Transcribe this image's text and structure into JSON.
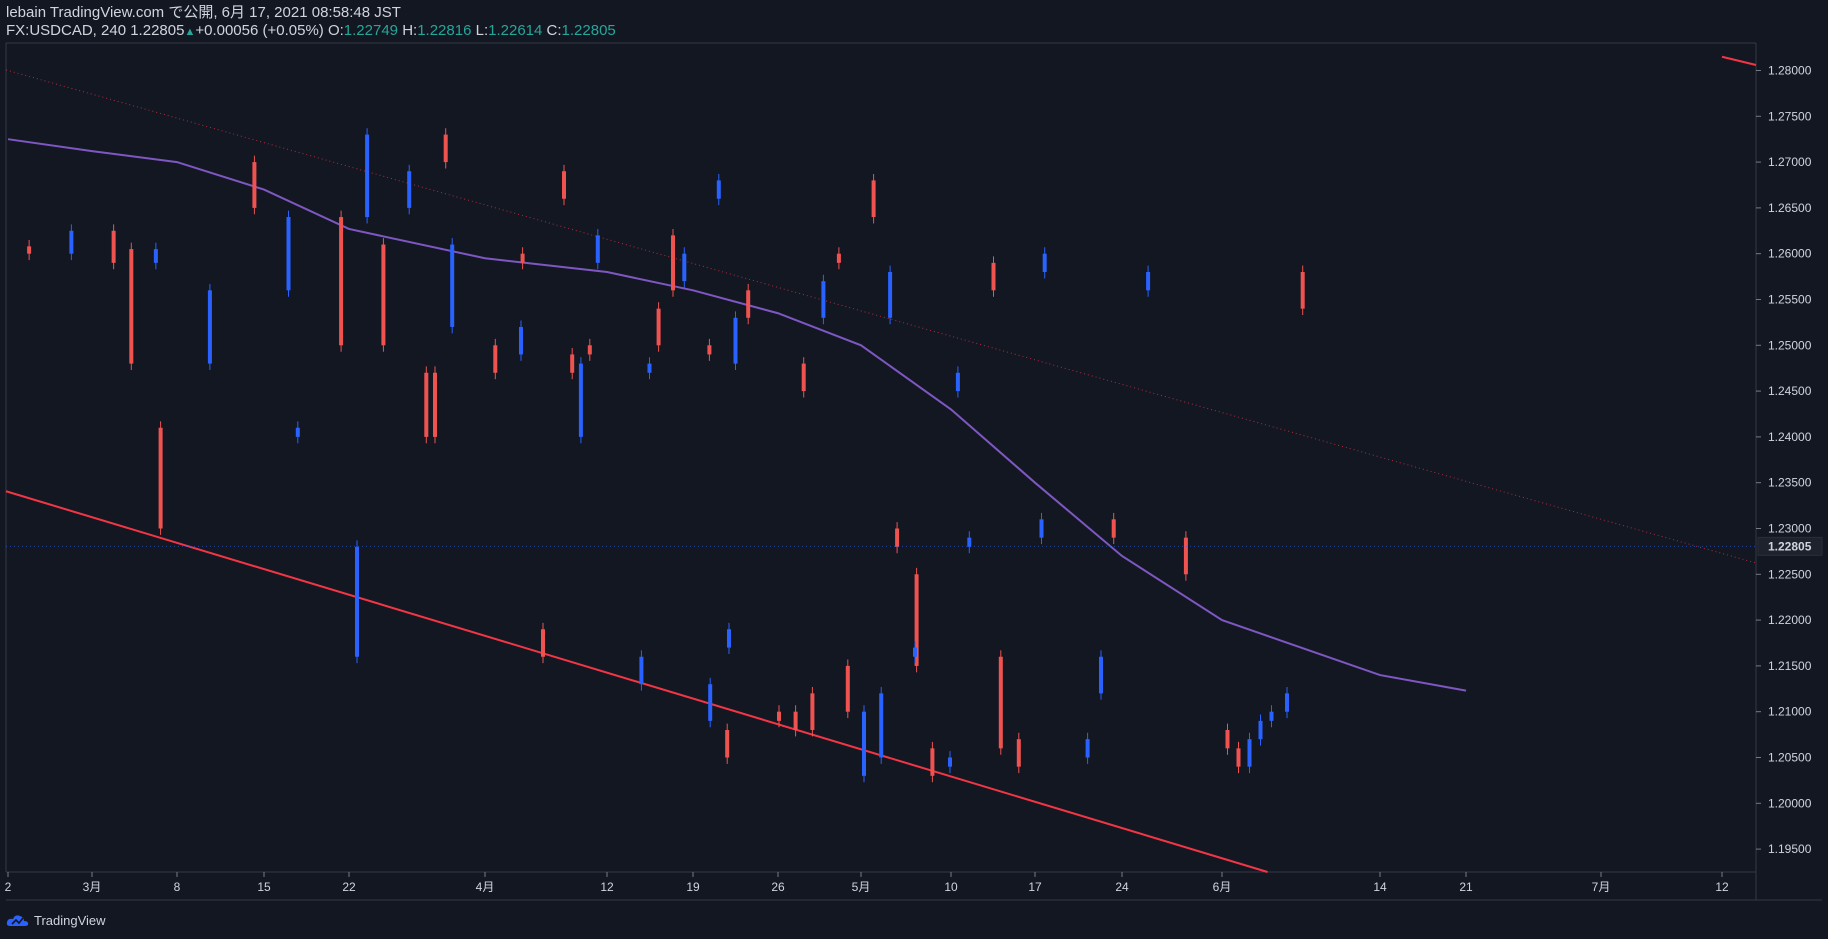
{
  "header": {
    "publisher": "lebain TradingView.com で公開, 6月 17, 2021 08:58:48 JST",
    "symbol": "FX:USDCAD, 240",
    "last": "1.22805",
    "change": "+0.00056 (+0.05%)",
    "o_label": "O:",
    "o_value": "1.22749",
    "h_label": "H:",
    "h_value": "1.22816",
    "l_label": "L:",
    "l_value": "1.22614",
    "c_label": "C:",
    "c_value": "1.22805"
  },
  "footer": {
    "brand": "TradingView",
    "icon": "tradingview-cloud-icon"
  },
  "colors": {
    "background": "#131722",
    "up": "#2962ff",
    "down": "#ef5350",
    "ma": "#7e57c2",
    "trendline": "#f23645",
    "grid_text": "#d1d4dc",
    "change_green": "#26a69a"
  },
  "chart_data": {
    "type": "candlestick",
    "symbol": "FX:USDCAD",
    "interval": "240",
    "ylim": [
      1.1925,
      1.283
    ],
    "y_ticks": [
      "1.28000",
      "1.27500",
      "1.27000",
      "1.26500",
      "1.26000",
      "1.25500",
      "1.25000",
      "1.24500",
      "1.24000",
      "1.23500",
      "1.23000",
      "1.22500",
      "1.22000",
      "1.21500",
      "1.21000",
      "1.20500",
      "1.20000",
      "1.19500"
    ],
    "x_ticks": [
      "2",
      "3月",
      "8",
      "15",
      "22",
      "4月",
      "12",
      "19",
      "26",
      "5月",
      "10",
      "17",
      "24",
      "6月",
      "14",
      "21",
      "7月",
      "12"
    ],
    "last_price_label": "1.22805",
    "close_path": [
      [
        "2",
        1.26
      ],
      [
        "2",
        1.2625
      ],
      [
        "2",
        1.259
      ],
      [
        "2",
        1.2605
      ],
      [
        "3月",
        1.248
      ],
      [
        "3月",
        1.256
      ],
      [
        "3月",
        1.264
      ],
      [
        "3月",
        1.273
      ],
      [
        "3月",
        1.27
      ],
      [
        "8",
        1.265
      ],
      [
        "8",
        1.269
      ],
      [
        "8",
        1.266
      ],
      [
        "8",
        1.268
      ],
      [
        "8",
        1.264
      ],
      [
        "15",
        1.25
      ],
      [
        "15",
        1.247
      ],
      [
        "15",
        1.248
      ],
      [
        "15",
        1.245
      ],
      [
        "15",
        1.247
      ],
      [
        "22",
        1.24
      ],
      [
        "22",
        1.248
      ],
      [
        "22",
        1.253
      ],
      [
        "22",
        1.258
      ],
      [
        "22",
        1.26
      ],
      [
        "4月",
        1.259
      ],
      [
        "4月",
        1.262
      ],
      [
        "4月",
        1.256
      ],
      [
        "4月",
        1.253
      ],
      [
        "4月",
        1.257
      ],
      [
        "12",
        1.26
      ],
      [
        "12",
        1.259
      ],
      [
        "12",
        1.256
      ],
      [
        "12",
        1.258
      ],
      [
        "12",
        1.254
      ],
      [
        "19",
        1.25
      ],
      [
        "19",
        1.249
      ],
      [
        "19",
        1.252
      ],
      [
        "19",
        1.261
      ],
      [
        "19",
        1.25
      ],
      [
        "26",
        1.249
      ],
      [
        "26",
        1.247
      ],
      [
        "26",
        1.24
      ],
      [
        "26",
        1.241
      ],
      [
        "26",
        1.23
      ],
      [
        "5月",
        1.228
      ],
      [
        "5月",
        1.229
      ],
      [
        "5月",
        1.231
      ],
      [
        "5月",
        1.229
      ],
      [
        "5月",
        1.225
      ],
      [
        "10",
        1.215
      ],
      [
        "10",
        1.21
      ],
      [
        "10",
        1.209
      ],
      [
        "10",
        1.213
      ],
      [
        "10",
        1.216
      ],
      [
        "17",
        1.206
      ],
      [
        "17",
        1.203
      ],
      [
        "17",
        1.21
      ],
      [
        "17",
        1.208
      ],
      [
        "17",
        1.205
      ],
      [
        "24",
        1.207
      ],
      [
        "24",
        1.204
      ],
      [
        "24",
        1.205
      ],
      [
        "24",
        1.212
      ],
      [
        "24",
        1.208
      ],
      [
        "6月",
        1.206
      ],
      [
        "6月",
        1.204
      ],
      [
        "6月",
        1.207
      ],
      [
        "6月",
        1.209
      ],
      [
        "6月",
        1.21
      ],
      [
        "14",
        1.212
      ],
      [
        "14",
        1.216
      ],
      [
        "14",
        1.217
      ],
      [
        "14",
        1.219
      ],
      [
        "14",
        1.216
      ],
      [
        "14",
        1.228
      ]
    ],
    "moving_average": [
      [
        "2",
        1.2725
      ],
      [
        "3月",
        1.2712
      ],
      [
        "8",
        1.27
      ],
      [
        "15",
        1.267
      ],
      [
        "22",
        1.2627
      ],
      [
        "4月",
        1.2595
      ],
      [
        "12",
        1.258
      ],
      [
        "19",
        1.256
      ],
      [
        "26",
        1.2535
      ],
      [
        "5月",
        1.25
      ],
      [
        "10",
        1.243
      ],
      [
        "17",
        1.235
      ],
      [
        "24",
        1.227
      ],
      [
        "6月",
        1.22
      ],
      [
        "14",
        1.214
      ],
      [
        "21",
        1.2123
      ]
    ],
    "trendlines": [
      {
        "style": "solid",
        "points": [
          [
            "2",
            1.234
          ],
          [
            "6月",
            1.194
          ]
        ]
      },
      {
        "style": "dotted",
        "points": [
          [
            "2",
            1.28
          ],
          [
            "7月",
            1.231
          ]
        ]
      }
    ]
  }
}
